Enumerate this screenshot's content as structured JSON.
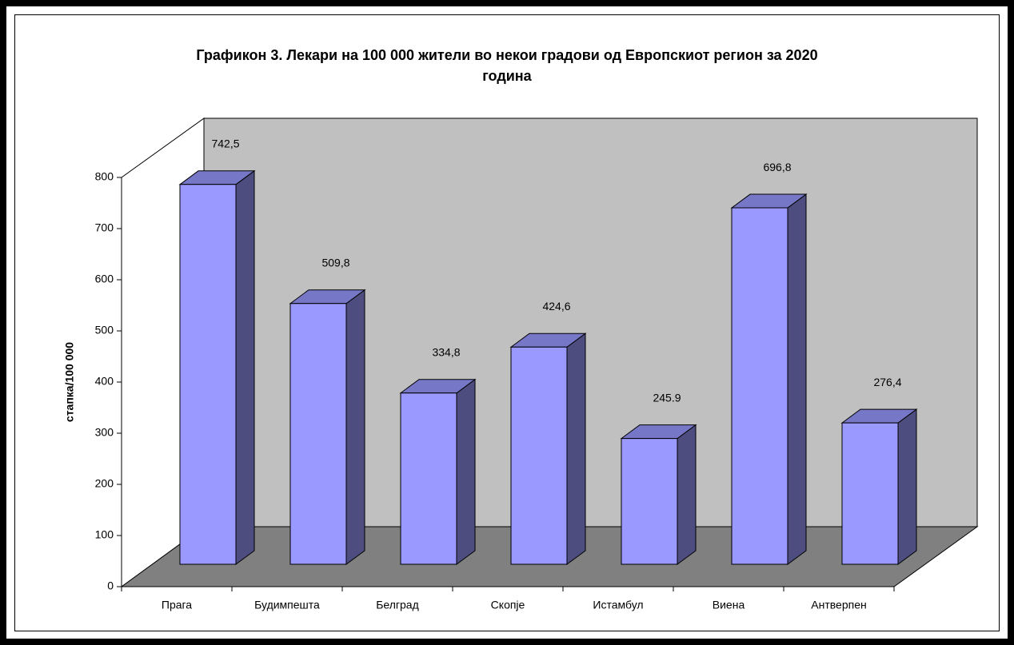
{
  "chart_data": {
    "type": "bar3d",
    "title": "Графикон 3.  Лекари на 100 000 жители во некои градови од Европскиот регион за 2020 година",
    "y_label": "стапка/100 000",
    "categories": [
      "Прага",
      "Будимпешта",
      "Белград",
      "Скопје",
      "Истамбул",
      "Виена",
      "Антверпен"
    ],
    "values": [
      742.5,
      509.8,
      334.8,
      424.6,
      245.9,
      696.8,
      276.4
    ],
    "value_labels": [
      "742,5",
      "509,8",
      "334,8",
      "424,6",
      "245.9",
      "696,8",
      "276,4"
    ],
    "color": "#9999ff",
    "ylim": [
      0,
      800
    ],
    "yticks": [
      0,
      100,
      200,
      300,
      400,
      500,
      600,
      700,
      800
    ]
  }
}
